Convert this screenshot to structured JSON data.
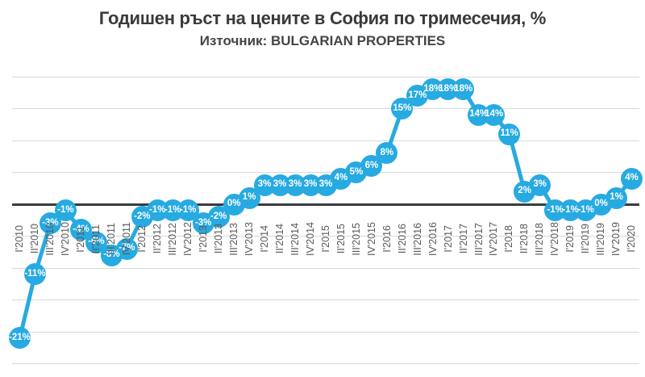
{
  "chart_data": {
    "type": "line",
    "title": "Годишен ръст на цените в София по тримесечия, %",
    "subtitle": "Източник: BULGARIAN PROPERTIES",
    "legend": "none",
    "grid": true,
    "gridline_step_pct": 5,
    "gridline_values": [
      20,
      15,
      10,
      5,
      0,
      -5,
      -10,
      -15,
      -20,
      -25
    ],
    "ylim": [
      -25,
      20
    ],
    "categories": [
      "I'2010",
      "II'2010",
      "III'2010",
      "IV'2010",
      "I'2011",
      "II'2011",
      "III'2011",
      "IV'2011",
      "I'2012",
      "II'2012",
      "III'2012",
      "IV'2012",
      "I'2013",
      "II'2013",
      "III'2013",
      "IV'2013",
      "I'2014",
      "II'2014",
      "III'2014",
      "IV'2014",
      "I'2015",
      "II'2015",
      "III'2015",
      "IV'2015",
      "I'2016",
      "II'2016",
      "III'2016",
      "IV'2016",
      "I'2017",
      "II'2017",
      "III'2017",
      "IV'2017",
      "I'2018",
      "II'2018",
      "III'2018",
      "IV'2018",
      "I'2019",
      "II'2019",
      "III'2019",
      "IV'2019",
      "I'2020"
    ],
    "values": [
      -21,
      -11,
      -3,
      -1,
      -4,
      -6,
      -8,
      -7,
      -2,
      -1,
      -1,
      -1,
      -3,
      -2,
      0,
      1,
      3,
      3,
      3,
      3,
      3,
      4,
      5,
      6,
      8,
      15,
      17,
      18,
      18,
      18,
      14,
      14,
      11,
      2,
      3,
      -1,
      -1,
      -1,
      0,
      1,
      4
    ],
    "data_label_format": "{value}%",
    "colors": {
      "line": "#27aae1",
      "marker": "#27aae1",
      "data_label": "#ffffff",
      "zero_axis": "#3b3b3b",
      "gridline": "#d9d9d9",
      "axis_label": "#595959",
      "title": "#3a3a3a"
    }
  }
}
